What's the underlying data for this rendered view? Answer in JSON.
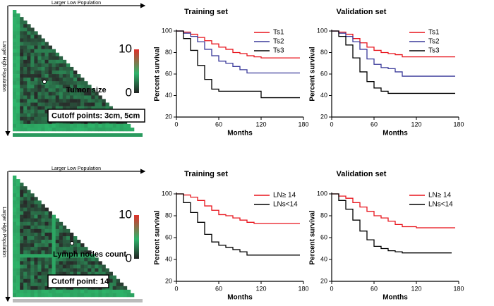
{
  "xtile_plots": [
    {
      "top_label": "Larger Low Population",
      "side_label": "Larger High Population",
      "caption": "Tumor size",
      "cutoff": "Cutoff points: 3cm, 5cm",
      "colorbar_ticks": [
        0,
        10
      ]
    },
    {
      "top_label": "Larger Low Population",
      "side_label": "Larger High Population",
      "caption": "Lymph nodes count",
      "cutoff": "Cutoff point:  14",
      "colorbar_ticks": [
        0,
        10
      ]
    }
  ],
  "chart_data": [
    {
      "type": "line",
      "title": "Training set",
      "xlabel": "Months",
      "ylabel": "Percent survival",
      "x": [
        0,
        10,
        20,
        30,
        40,
        50,
        60,
        70,
        80,
        90,
        100,
        110,
        120,
        130,
        140,
        150,
        160,
        170,
        175
      ],
      "series": [
        {
          "name": "Ts1",
          "color": "#e8141c",
          "values": [
            100,
            99,
            97,
            94,
            91,
            88,
            85,
            83,
            80,
            79,
            77,
            76,
            75,
            75,
            75,
            75,
            75,
            75,
            75
          ]
        },
        {
          "name": "Ts2",
          "color": "#3a3a9a",
          "values": [
            100,
            98,
            95,
            90,
            83,
            77,
            72,
            70,
            67,
            64,
            61,
            61,
            61,
            61,
            61,
            61,
            61,
            61,
            61
          ]
        },
        {
          "name": "Ts3",
          "color": "#000000",
          "values": [
            100,
            93,
            82,
            68,
            55,
            46,
            44,
            44,
            44,
            44,
            44,
            44,
            38,
            38,
            38,
            38,
            38,
            38,
            38
          ]
        }
      ],
      "xlim": [
        0,
        180
      ],
      "ylim": [
        20,
        100
      ],
      "xticks": [
        0,
        60,
        120,
        180
      ],
      "yticks": [
        20,
        40,
        60,
        80,
        100
      ]
    },
    {
      "type": "line",
      "title": "Validation set",
      "xlabel": "Months",
      "ylabel": "Percent survival",
      "x": [
        0,
        10,
        20,
        30,
        40,
        50,
        60,
        70,
        80,
        90,
        100,
        110,
        120,
        130,
        140,
        150,
        160,
        170,
        175
      ],
      "series": [
        {
          "name": "Ts1",
          "color": "#e8141c",
          "values": [
            100,
            99,
            97,
            93,
            89,
            85,
            82,
            80,
            79,
            78,
            76,
            76,
            76,
            76,
            76,
            76,
            76,
            76,
            76
          ]
        },
        {
          "name": "Ts2",
          "color": "#3a3a9a",
          "values": [
            100,
            98,
            95,
            90,
            83,
            74,
            69,
            66,
            65,
            62,
            58,
            58,
            58,
            58,
            58,
            58,
            58,
            58,
            58
          ]
        },
        {
          "name": "Ts3",
          "color": "#000000",
          "values": [
            100,
            95,
            87,
            75,
            62,
            53,
            47,
            44,
            42,
            42,
            42,
            42,
            42,
            42,
            42,
            42,
            42,
            42,
            42
          ]
        }
      ],
      "xlim": [
        0,
        180
      ],
      "ylim": [
        20,
        100
      ],
      "xticks": [
        0,
        60,
        120,
        180
      ],
      "yticks": [
        20,
        40,
        60,
        80,
        100
      ]
    },
    {
      "type": "line",
      "title": "Training set",
      "xlabel": "Months",
      "ylabel": "Percent survival",
      "x": [
        0,
        10,
        20,
        30,
        40,
        50,
        60,
        70,
        80,
        90,
        100,
        110,
        120,
        130,
        140,
        150,
        160,
        170,
        175
      ],
      "series": [
        {
          "name": "LN≥ 14",
          "color": "#e8141c",
          "values": [
            100,
            99,
            97,
            94,
            89,
            85,
            81,
            80,
            78,
            76,
            74,
            73,
            73,
            73,
            73,
            73,
            73,
            73,
            73
          ]
        },
        {
          "name": "LNs<14",
          "color": "#000000",
          "values": [
            100,
            92,
            83,
            74,
            63,
            56,
            53,
            51,
            49,
            47,
            44,
            44,
            44,
            44,
            44,
            44,
            44,
            44,
            44
          ]
        }
      ],
      "xlim": [
        0,
        180
      ],
      "ylim": [
        20,
        100
      ],
      "xticks": [
        0,
        60,
        120,
        180
      ],
      "yticks": [
        20,
        40,
        60,
        80,
        100
      ]
    },
    {
      "type": "line",
      "title": "Validation set",
      "xlabel": "Months",
      "ylabel": "Percent survival",
      "x": [
        0,
        10,
        20,
        30,
        40,
        50,
        60,
        70,
        80,
        90,
        100,
        110,
        120,
        130,
        140,
        150,
        160,
        170,
        175
      ],
      "series": [
        {
          "name": "LN≥ 14",
          "color": "#e8141c",
          "values": [
            100,
            98,
            96,
            92,
            88,
            84,
            80,
            78,
            75,
            72,
            70,
            70,
            69,
            69,
            69,
            69,
            69,
            69,
            69
          ]
        },
        {
          "name": "LNs<14",
          "color": "#000000",
          "values": [
            100,
            94,
            86,
            76,
            66,
            58,
            52,
            50,
            48,
            47,
            46,
            46,
            46,
            46,
            46,
            46,
            46,
            46,
            null
          ]
        }
      ],
      "xlim": [
        0,
        180
      ],
      "ylim": [
        20,
        100
      ],
      "xticks": [
        0,
        60,
        120,
        180
      ],
      "yticks": [
        20,
        40,
        60,
        80,
        100
      ]
    }
  ]
}
